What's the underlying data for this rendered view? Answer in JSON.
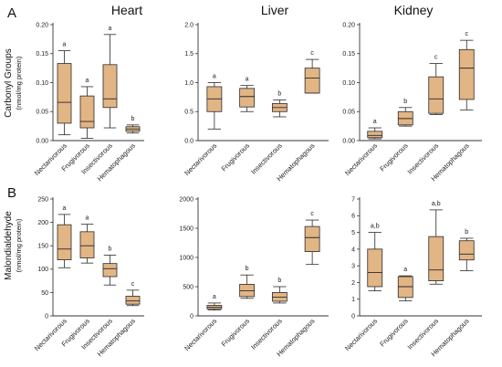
{
  "figure": {
    "panel_labels": [
      "A",
      "B"
    ],
    "column_titles": [
      "Heart",
      "Liver",
      "Kidney"
    ],
    "row_ylabels": [
      {
        "main": "Carbonyl Groups",
        "sub": "(nmol/mg protein)"
      },
      {
        "main": "Malondialdehyde",
        "sub": "(nmol/mg protein)"
      }
    ]
  },
  "chart_data": [
    {
      "type": "box",
      "row": 0,
      "col": 0,
      "categories": [
        "Nectarivorous",
        "Frugivorous",
        "Insectivorous",
        "Hematophagous"
      ],
      "ylim": [
        0,
        0.2
      ],
      "yticks": [
        "0.00",
        "0.05",
        "0.10",
        "0.15",
        "0.20"
      ],
      "yticks_values": [
        0,
        0.05,
        0.1,
        0.15,
        0.2
      ],
      "boxes": [
        {
          "min": 0.01,
          "q1": 0.03,
          "median": 0.066,
          "q3": 0.133,
          "max": 0.155
        },
        {
          "min": 0.004,
          "q1": 0.022,
          "median": 0.033,
          "q3": 0.077,
          "max": 0.093
        },
        {
          "min": 0.022,
          "q1": 0.057,
          "median": 0.072,
          "q3": 0.131,
          "max": 0.183
        },
        {
          "min": 0.013,
          "q1": 0.016,
          "median": 0.02,
          "q3": 0.024,
          "max": 0.027
        }
      ],
      "significance": [
        "a",
        "a",
        "a",
        "b"
      ]
    },
    {
      "type": "box",
      "row": 0,
      "col": 1,
      "categories": [
        "Nectarivorous",
        "Frugivorous",
        "Insectivorous",
        "Hematophagous"
      ],
      "ylim": [
        0,
        2.0
      ],
      "yticks": [
        "0.0",
        "0.5",
        "1.0",
        "1.5",
        "2.0"
      ],
      "yticks_values": [
        0,
        0.5,
        1.0,
        1.5,
        2.0
      ],
      "boxes": [
        {
          "min": 0.2,
          "q1": 0.5,
          "median": 0.72,
          "q3": 0.93,
          "max": 1.0
        },
        {
          "min": 0.5,
          "q1": 0.58,
          "median": 0.76,
          "q3": 0.9,
          "max": 0.95
        },
        {
          "min": 0.41,
          "q1": 0.5,
          "median": 0.57,
          "q3": 0.64,
          "max": 0.7
        },
        {
          "min": 0.82,
          "q1": 0.82,
          "median": 1.08,
          "q3": 1.25,
          "max": 1.4
        }
      ],
      "significance": [
        "a",
        "a",
        "b",
        "c"
      ]
    },
    {
      "type": "box",
      "row": 0,
      "col": 2,
      "categories": [
        "Nectarivorous",
        "Frugivorous",
        "Insectivorous",
        "Hematophagous"
      ],
      "ylim": [
        0,
        0.2
      ],
      "yticks": [
        "0.00",
        "0.05",
        "0.10",
        "0.15",
        "0.20"
      ],
      "yticks_values": [
        0,
        0.05,
        0.1,
        0.15,
        0.2
      ],
      "boxes": [
        {
          "min": 0.003,
          "q1": 0.005,
          "median": 0.009,
          "q3": 0.016,
          "max": 0.022
        },
        {
          "min": 0.025,
          "q1": 0.027,
          "median": 0.038,
          "q3": 0.05,
          "max": 0.057
        },
        {
          "min": 0.045,
          "q1": 0.047,
          "median": 0.072,
          "q3": 0.11,
          "max": 0.133
        },
        {
          "min": 0.053,
          "q1": 0.071,
          "median": 0.125,
          "q3": 0.157,
          "max": 0.173
        }
      ],
      "significance": [
        "a",
        "b",
        "c",
        "c"
      ]
    },
    {
      "type": "box",
      "row": 1,
      "col": 0,
      "categories": [
        "Nectarivorous",
        "Frugivorous",
        "Insectivorous",
        "Hematophagous"
      ],
      "ylim": [
        0,
        250
      ],
      "yticks": [
        "0",
        "50",
        "100",
        "150",
        "200",
        "250"
      ],
      "yticks_values": [
        0,
        50,
        100,
        150,
        200,
        250
      ],
      "boxes": [
        {
          "min": 103,
          "q1": 120,
          "median": 143,
          "q3": 195,
          "max": 217
        },
        {
          "min": 113,
          "q1": 124,
          "median": 150,
          "q3": 180,
          "max": 196
        },
        {
          "min": 66,
          "q1": 84,
          "median": 101,
          "q3": 112,
          "max": 130
        },
        {
          "min": 22,
          "q1": 25,
          "median": 32,
          "q3": 42,
          "max": 55
        }
      ],
      "significance": [
        "a",
        "a",
        "b",
        "c"
      ]
    },
    {
      "type": "box",
      "row": 1,
      "col": 1,
      "categories": [
        "Nectarivorous",
        "Frugivorous",
        "Insectivorous",
        "Hematophagous"
      ],
      "ylim": [
        0,
        2000
      ],
      "yticks": [
        "0",
        "500",
        "1000",
        "1500",
        "2000"
      ],
      "yticks_values": [
        0,
        500,
        1000,
        1500,
        2000
      ],
      "boxes": [
        {
          "min": 100,
          "q1": 120,
          "median": 150,
          "q3": 180,
          "max": 220
        },
        {
          "min": 300,
          "q1": 330,
          "median": 430,
          "q3": 540,
          "max": 700
        },
        {
          "min": 220,
          "q1": 250,
          "median": 320,
          "q3": 400,
          "max": 500
        },
        {
          "min": 880,
          "q1": 1100,
          "median": 1340,
          "q3": 1530,
          "max": 1640
        }
      ],
      "significance": [
        "a",
        "b",
        "b",
        "c"
      ]
    },
    {
      "type": "box",
      "row": 1,
      "col": 2,
      "categories": [
        "Nectarivorous",
        "Frugivorous",
        "Insectivorous",
        "Hematophagous"
      ],
      "ylim": [
        0,
        7
      ],
      "yticks": [
        "0",
        "1",
        "2",
        "3",
        "4",
        "5",
        "6",
        "7"
      ],
      "yticks_values": [
        0,
        1,
        2,
        3,
        4,
        5,
        6,
        7
      ],
      "boxes": [
        {
          "min": 1.5,
          "q1": 1.75,
          "median": 2.6,
          "q3": 4.0,
          "max": 5.0
        },
        {
          "min": 0.9,
          "q1": 1.1,
          "median": 1.75,
          "q3": 2.35,
          "max": 2.4
        },
        {
          "min": 1.9,
          "q1": 2.1,
          "median": 2.75,
          "q3": 4.75,
          "max": 6.35
        },
        {
          "min": 2.7,
          "q1": 3.35,
          "median": 3.7,
          "q3": 4.5,
          "max": 4.65
        }
      ],
      "significance": [
        "a,b",
        "a",
        "a,b",
        "b"
      ]
    }
  ],
  "colors": {
    "box_fill": "#e2b585",
    "box_stroke": "#2a2a2a",
    "axis": "#333333",
    "background": "#ffffff"
  }
}
